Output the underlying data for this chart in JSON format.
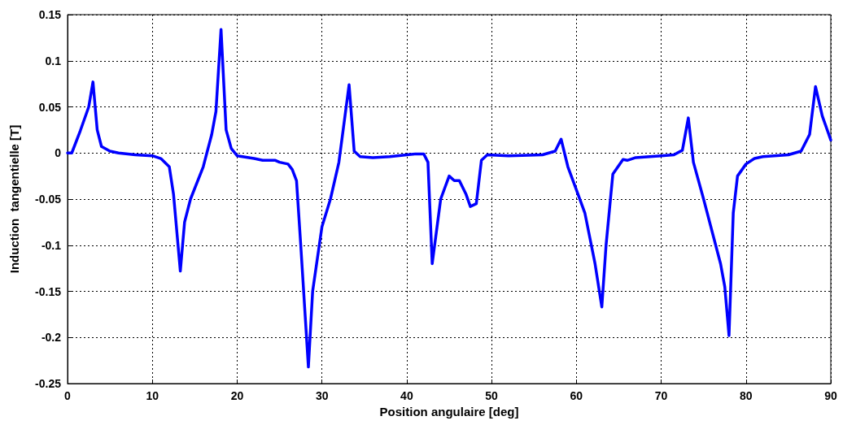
{
  "chart_data": {
    "type": "line",
    "xlabel": "Position angulaire [deg]",
    "ylabel": "Induction  tangentielle [T]",
    "xlim": [
      0,
      90
    ],
    "xticks": [
      0,
      10,
      20,
      30,
      40,
      50,
      60,
      70,
      80,
      90
    ],
    "ylim": [
      -0.25,
      0.15
    ],
    "yticks": [
      -0.25,
      -0.2,
      -0.15,
      -0.1,
      -0.05,
      0,
      0.05,
      0.1,
      0.15
    ],
    "grid": true,
    "marker": "none",
    "line_style": "solid",
    "series": [
      {
        "color": "#0000ff",
        "x": [
          0,
          0.5,
          1.5,
          2.5,
          3,
          3.5,
          4,
          5,
          6,
          8,
          10,
          11,
          12,
          12.5,
          13.3,
          13.8,
          14.5,
          16,
          17,
          17.5,
          18.1,
          18.7,
          19.3,
          20,
          22,
          23,
          24.5,
          25,
          26,
          26.5,
          27,
          27.5,
          28.4,
          28.9,
          30,
          31,
          32,
          33.2,
          33.8,
          34.5,
          36,
          38,
          40,
          41,
          42,
          42.5,
          43,
          44,
          45,
          45.6,
          46.2,
          47,
          47.5,
          48.2,
          48.8,
          49.5,
          52,
          56,
          57.5,
          58.2,
          59,
          59.8,
          61,
          62.2,
          63,
          63.5,
          64.3,
          65.5,
          66,
          67,
          70,
          71.5,
          72.5,
          73.2,
          73.8,
          75,
          76,
          77,
          77.5,
          78,
          78.5,
          79,
          80,
          81,
          82,
          85,
          86.5,
          87.5,
          88.2,
          89,
          90
        ],
        "values": [
          0,
          0,
          0.024,
          0.05,
          0.077,
          0.025,
          0.007,
          0.002,
          0,
          -0.002,
          -0.003,
          -0.006,
          -0.015,
          -0.045,
          -0.128,
          -0.075,
          -0.05,
          -0.015,
          0.02,
          0.045,
          0.134,
          0.025,
          0.005,
          -0.003,
          -0.006,
          -0.008,
          -0.008,
          -0.01,
          -0.012,
          -0.018,
          -0.03,
          -0.1,
          -0.232,
          -0.15,
          -0.08,
          -0.05,
          -0.01,
          0.074,
          0.002,
          -0.004,
          -0.005,
          -0.004,
          -0.002,
          -0.001,
          -0.001,
          -0.01,
          -0.12,
          -0.05,
          -0.025,
          -0.03,
          -0.03,
          -0.045,
          -0.058,
          -0.055,
          -0.008,
          -0.002,
          -0.003,
          -0.002,
          0.002,
          0.015,
          -0.015,
          -0.035,
          -0.065,
          -0.12,
          -0.167,
          -0.1,
          -0.023,
          -0.007,
          -0.008,
          -0.005,
          -0.003,
          -0.002,
          0.003,
          0.038,
          -0.01,
          -0.05,
          -0.085,
          -0.12,
          -0.145,
          -0.198,
          -0.065,
          -0.025,
          -0.012,
          -0.006,
          -0.004,
          -0.002,
          0.002,
          0.02,
          0.072,
          0.04,
          0.014
        ]
      }
    ]
  }
}
